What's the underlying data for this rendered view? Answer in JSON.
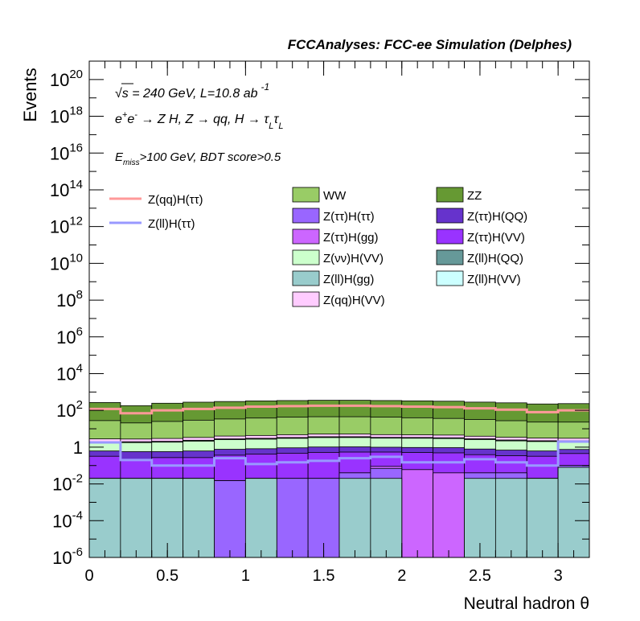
{
  "chart_data": {
    "type": "stacked-histogram",
    "title": "FCCAnalyses: FCC-ee Simulation (Delphes)",
    "xlabel": "Neutral hadron θ",
    "ylabel": "Events",
    "xlim": [
      0,
      3.2
    ],
    "ylim": [
      1e-06,
      1e+21
    ],
    "yscale": "log",
    "x_ticks": [
      {
        "value": 0,
        "label": "0"
      },
      {
        "value": 0.5,
        "label": "0.5"
      },
      {
        "value": 1,
        "label": "1"
      },
      {
        "value": 1.5,
        "label": "1.5"
      },
      {
        "value": 2,
        "label": "2"
      },
      {
        "value": 2.5,
        "label": "2.5"
      },
      {
        "value": 3,
        "label": "3"
      }
    ],
    "y_ticks": [
      {
        "exp": -6,
        "base": "10",
        "sup": "-6"
      },
      {
        "exp": -4,
        "base": "10",
        "sup": "-4"
      },
      {
        "exp": -2,
        "base": "10",
        "sup": "-2"
      },
      {
        "exp": 0,
        "base": "1",
        "sup": ""
      },
      {
        "exp": 2,
        "base": "10",
        "sup": "2"
      },
      {
        "exp": 4,
        "base": "10",
        "sup": "4"
      },
      {
        "exp": 6,
        "base": "10",
        "sup": "6"
      },
      {
        "exp": 8,
        "base": "10",
        "sup": "8"
      },
      {
        "exp": 10,
        "base": "10",
        "sup": "10"
      },
      {
        "exp": 12,
        "base": "10",
        "sup": "12"
      },
      {
        "exp": 14,
        "base": "10",
        "sup": "14"
      },
      {
        "exp": 16,
        "base": "10",
        "sup": "16"
      },
      {
        "exp": 18,
        "base": "10",
        "sup": "18"
      },
      {
        "exp": 20,
        "base": "10",
        "sup": "20"
      }
    ],
    "annotations": {
      "line1": {
        "sqrt": "√s",
        "main": " = 240 GeV, L=10.8 ab",
        "sup": "-1"
      },
      "line2": {
        "a": "e",
        "a_sup": "+",
        "b": "e",
        "b_sup": "-",
        "c": " → Z H, Z  → qq, H  → τ",
        "sub1": "L",
        "d": "τ",
        "sub2": "L"
      },
      "line3": {
        "a": "E",
        "sub": "miss",
        "b": ">100 GeV, BDT score>0.5"
      }
    },
    "bin_edges": [
      0,
      0.2,
      0.4,
      0.6,
      0.8,
      1.0,
      1.2,
      1.4,
      1.6,
      1.8,
      2.0,
      2.2,
      2.4,
      2.6,
      2.8,
      3.0,
      3.2
    ],
    "stack": [
      {
        "name": "Z(ll)H(gg)",
        "color": "#99cccc",
        "values": [
          0.02,
          0.02,
          0.02,
          0.02,
          0,
          0.02,
          0,
          0,
          0.02,
          0.02,
          0,
          0,
          0.02,
          0.02,
          0.02,
          0.08
        ]
      },
      {
        "name": "Z(ττ)H(ττ)",
        "color": "#9966ff",
        "values": [
          0,
          0,
          0,
          0,
          0.015,
          0,
          0.02,
          0.02,
          0.02,
          0.05,
          0,
          0,
          0.02,
          0.02,
          0,
          0.02
        ]
      },
      {
        "name": "Z(ττ)H(gg)",
        "color": "#cc66ff",
        "values": [
          0,
          0,
          0,
          0,
          0,
          0,
          0,
          0,
          0,
          0.02,
          0.06,
          0.04,
          0,
          0,
          0,
          0
        ]
      },
      {
        "name": "Z(ττ)H(VV)",
        "color": "#9933ff",
        "values": [
          0.3,
          0.2,
          0.25,
          0.25,
          0.35,
          0.4,
          0.45,
          0.5,
          0.5,
          0.45,
          0.45,
          0.45,
          0.35,
          0.3,
          0.3,
          0.35
        ]
      },
      {
        "name": "Z(ττ)H(QQ)",
        "color": "#6633cc",
        "values": [
          0.3,
          0.35,
          0.3,
          0.35,
          0.4,
          0.4,
          0.45,
          0.5,
          0.5,
          0.45,
          0.45,
          0.45,
          0.4,
          0.35,
          0.3,
          0.3
        ]
      },
      {
        "name": "Z(νν)H(VV)",
        "color": "#ccffcc",
        "values": [
          1.2,
          1.2,
          1.3,
          1.5,
          1.8,
          1.9,
          2.1,
          2.3,
          2.3,
          2.1,
          2.1,
          2.0,
          1.8,
          1.5,
          1.4,
          1.3
        ]
      },
      {
        "name": "Z(ll)H(QQ)",
        "color": "#669999",
        "values": [
          0.15,
          0.15,
          0.15,
          0.2,
          0.2,
          0.25,
          0.25,
          0.3,
          0.3,
          0.25,
          0.25,
          0.25,
          0.2,
          0.2,
          0.15,
          0.15
        ]
      },
      {
        "name": "Z(ll)H(VV)",
        "color": "#ccffff",
        "values": [
          0.05,
          0.05,
          0.05,
          0.05,
          0.05,
          0.05,
          0.05,
          0.05,
          0.05,
          0.05,
          0.05,
          0.05,
          0.05,
          0.05,
          0.05,
          0.05
        ]
      },
      {
        "name": "Z(qq)H(VV)",
        "color": "#ffccff",
        "values": [
          0.8,
          0.8,
          0.9,
          1.0,
          1.2,
          1.3,
          1.4,
          1.5,
          1.5,
          1.4,
          1.3,
          1.3,
          1.1,
          1.0,
          0.9,
          0.8
        ]
      },
      {
        "name": "WW",
        "color": "#99cc66",
        "values": [
          25,
          18,
          22,
          26,
          30,
          34,
          38,
          40,
          40,
          38,
          35,
          32,
          28,
          24,
          20,
          20
        ]
      },
      {
        "name": "ZZ",
        "color": "#669933",
        "values": [
          240,
          160,
          220,
          250,
          270,
          290,
          300,
          310,
          310,
          300,
          290,
          280,
          250,
          230,
          200,
          210
        ]
      }
    ],
    "lines": [
      {
        "name": "Z(qq)H(ττ)",
        "color": "#ff9999",
        "values": [
          120,
          70,
          100,
          120,
          140,
          160,
          170,
          180,
          180,
          170,
          160,
          150,
          130,
          110,
          80,
          100
        ]
      },
      {
        "name": "Z(ll)H(ττ)",
        "color": "#9999ff",
        "values": [
          1.8,
          0.2,
          0.1,
          0.1,
          0.25,
          0.12,
          0.15,
          0.18,
          0.25,
          0.3,
          0.15,
          0.15,
          0.22,
          0.15,
          0.1,
          2.0
        ]
      }
    ],
    "legend_lines": [
      "Z(qq)H(ττ)",
      "Z(ll)H(ττ)"
    ],
    "legend_col1": [
      "WW",
      "Z(ττ)H(ττ)",
      "Z(ττ)H(gg)",
      "Z(νν)H(VV)",
      "Z(ll)H(gg)",
      "Z(qq)H(VV)"
    ],
    "legend_col2": [
      "ZZ",
      "Z(ττ)H(QQ)",
      "Z(ττ)H(VV)",
      "Z(ll)H(QQ)",
      "Z(ll)H(VV)"
    ]
  }
}
